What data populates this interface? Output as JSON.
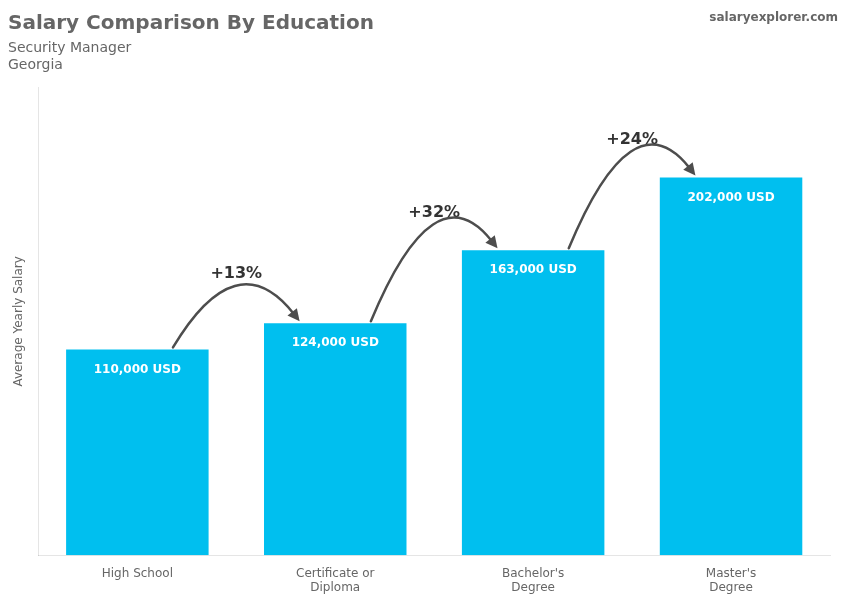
{
  "chart_data": {
    "type": "bar",
    "title": "Salary Comparison By Education",
    "subtitle": [
      "Security Manager",
      "Georgia"
    ],
    "y_label": "Average Yearly Salary",
    "categories": [
      "High School",
      "Certificate or\nDiploma",
      "Bachelor's\nDegree",
      "Master's\nDegree"
    ],
    "values": [
      110000,
      124000,
      163000,
      202000
    ],
    "value_labels": [
      "110,000 USD",
      "124,000 USD",
      "163,000 USD",
      "202,000 USD"
    ],
    "data_labels": true,
    "color": "#00BFEF",
    "ylim": [
      0,
      250000
    ],
    "yticks": [],
    "tick_labels": "x",
    "grid": false,
    "annotations": [
      {
        "text": "+13%",
        "from": "High School",
        "to": "Certificate or\nDiploma"
      },
      {
        "text": "+32%",
        "from": "Certificate or\nDiploma",
        "to": "Bachelor's\nDegree"
      },
      {
        "text": "+24%",
        "from": "Bachelor's\nDegree",
        "to": "Master's\nDegree"
      },
      {
        "text": "salaryexplorer.com"
      }
    ]
  }
}
